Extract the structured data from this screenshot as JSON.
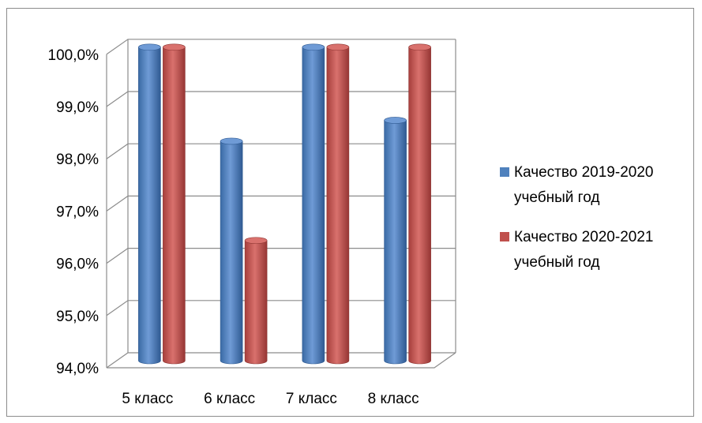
{
  "chart_data": {
    "type": "bar",
    "categories": [
      "5 класс",
      "6 класс",
      "7 класс",
      "8 класс"
    ],
    "series": [
      {
        "name": "Качество 2019-2020 учебный год",
        "legend_lines": [
          "Качество 2019-2020",
          "учебный год"
        ],
        "color": "#4f81bd",
        "values": [
          100.0,
          98.2,
          100.0,
          98.6
        ]
      },
      {
        "name": "Качество 2020-2021 учебный год",
        "legend_lines": [
          "Качество 2020-2021",
          "учебный год"
        ],
        "color": "#c0504d",
        "values": [
          100.0,
          96.3,
          100.0,
          100.0
        ]
      }
    ],
    "ylim": [
      94.0,
      100.0
    ],
    "yticks": [
      "94,0%",
      "95,0%",
      "96,0%",
      "97,0%",
      "98,0%",
      "99,0%",
      "100,0%"
    ],
    "grid": true,
    "legend": "right",
    "style": "3d-cylinder"
  }
}
